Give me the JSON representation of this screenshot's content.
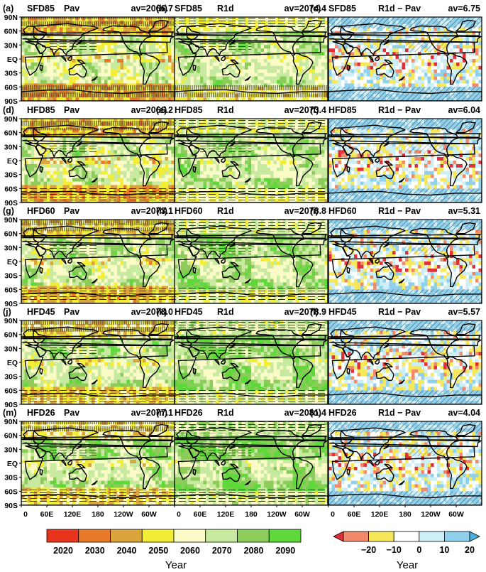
{
  "chart_data": {
    "type": "heatmap",
    "grid": {
      "rows": 5,
      "cols": 3
    },
    "lat_ticks": [
      "90N",
      "60N",
      "30N",
      "EQ",
      "30S",
      "60S",
      "90S"
    ],
    "lon_ticks": [
      "0",
      "60E",
      "120E",
      "180",
      "120W",
      "60W"
    ],
    "panels": [
      {
        "label": "(a)",
        "experiment": "SFD85",
        "kind": "Pav",
        "av": "av=2066.7",
        "field": "year"
      },
      {
        "label": "(b)",
        "experiment": "SFD85",
        "kind": "R1d",
        "av": "av=2074.4",
        "field": "year"
      },
      {
        "label": "(c)",
        "experiment": "SFD85",
        "kind": "R1d − Pav",
        "av": "av=6.75",
        "field": "diff"
      },
      {
        "label": "(d)",
        "experiment": "HFD85",
        "kind": "Pav",
        "av": "av=2066.2",
        "field": "year"
      },
      {
        "label": "(e)",
        "experiment": "HFD85",
        "kind": "R1d",
        "av": "av=2073.4",
        "field": "year"
      },
      {
        "label": "(f)",
        "experiment": "HFD85",
        "kind": "R1d − Pav",
        "av": "av=6.04",
        "field": "diff"
      },
      {
        "label": "(g)",
        "experiment": "HFD60",
        "kind": "Pav",
        "av": "av=2073.1",
        "field": "year"
      },
      {
        "label": "(h)",
        "experiment": "HFD60",
        "kind": "R1d",
        "av": "av=2078.8",
        "field": "year"
      },
      {
        "label": "(i)",
        "experiment": "HFD60",
        "kind": "R1d − Pav",
        "av": "av=5.31",
        "field": "diff"
      },
      {
        "label": "(j)",
        "experiment": "HFD45",
        "kind": "Pav",
        "av": "av=2073.0",
        "field": "year"
      },
      {
        "label": "(k)",
        "experiment": "HFD45",
        "kind": "R1d",
        "av": "av=2078.9",
        "field": "year"
      },
      {
        "label": "(l)",
        "experiment": "HFD45",
        "kind": "R1d − Pav",
        "av": "av=5.57",
        "field": "diff"
      },
      {
        "label": "(m)",
        "experiment": "HFD26",
        "kind": "Pav",
        "av": "av=2077.1",
        "field": "year"
      },
      {
        "label": "(n)",
        "experiment": "HFD26",
        "kind": "R1d",
        "av": "av=2081.4",
        "field": "year"
      },
      {
        "label": "(o)",
        "experiment": "HFD26",
        "kind": "R1d − Pav",
        "av": "av=4.04",
        "field": "diff"
      }
    ],
    "colorbar_year": {
      "ticks": [
        "2020",
        "2030",
        "2040",
        "2050",
        "2060",
        "2070",
        "2080",
        "2090"
      ],
      "colors": [
        "#e8341c",
        "#e87b2a",
        "#d9a53c",
        "#f2ee38",
        "#fbfbc8",
        "#c8eaa0",
        "#8ccc5a",
        "#5ed83a"
      ],
      "title": "Year"
    },
    "colorbar_diff": {
      "ticks": [
        "−20",
        "−10",
        "0",
        "10",
        "20"
      ],
      "colors": [
        "#e0303a",
        "#f08a6a",
        "#f6e85a",
        "#ffffff",
        "#cceef6",
        "#8fd0ec",
        "#4aaee0"
      ],
      "title": "Year"
    }
  }
}
